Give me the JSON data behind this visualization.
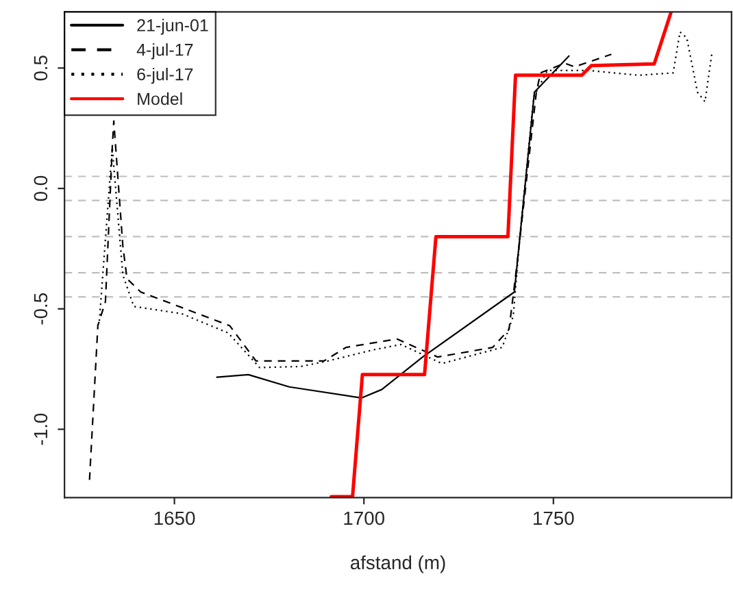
{
  "chart_data": {
    "type": "line",
    "xlabel": "afstand (m)",
    "xlim": [
      1621,
      1797
    ],
    "ylim": [
      -1.284,
      0.733
    ],
    "xticks": [
      1650,
      1700,
      1750
    ],
    "yticks": [
      {
        "value": -1,
        "label": "-1.0"
      },
      -0.5,
      {
        "value": 0,
        "label": "0.0"
      },
      0.5
    ],
    "grid": false,
    "legend": "top left",
    "series": [
      {
        "name": "21-jun-01",
        "color": "#000000",
        "line_style": "solid",
        "x": [
          1661.2,
          1669.5,
          1680.3,
          1699.3,
          1704.7,
          1715.5,
          1739.7,
          1745,
          1754.1
        ],
        "values": [
          -0.784,
          -0.773,
          -0.824,
          -0.87,
          -0.835,
          -0.7,
          -0.43,
          0.4,
          0.55
        ]
      },
      {
        "name": "4-jul-17",
        "color": "#000000",
        "line_style": "dashed",
        "x": [
          1627.6,
          1629.8,
          1631.8,
          1633.6,
          1634,
          1636.4,
          1637.5,
          1641.1,
          1664.6,
          1671.5,
          1689.5,
          1695.3,
          1708.7,
          1719.5,
          1734,
          1738.3,
          1740.5,
          1745.5,
          1746.6,
          1753,
          1755.6,
          1765.3
        ],
        "values": [
          -1.21,
          -0.57,
          -0.47,
          0.17,
          0.28,
          -0.24,
          -0.375,
          -0.43,
          -0.57,
          -0.716,
          -0.716,
          -0.66,
          -0.625,
          -0.7,
          -0.66,
          -0.585,
          -0.3,
          0.4,
          0.48,
          0.52,
          0.505,
          0.557
        ]
      },
      {
        "name": "6-jul-17",
        "color": "#000000",
        "line_style": "dotted",
        "x": [
          1630.2,
          1633.6,
          1636.4,
          1639.3,
          1651.9,
          1664.2,
          1672.5,
          1683.4,
          1690.6,
          1702.5,
          1709.8,
          1720.6,
          1736.5,
          1739.4,
          1741.2,
          1744.8,
          1748.4,
          1759.2,
          1772.6,
          1781.6,
          1783.4,
          1785.2,
          1788,
          1790,
          1791.8
        ],
        "values": [
          -0.55,
          0.17,
          -0.36,
          -0.49,
          -0.52,
          -0.6,
          -0.744,
          -0.739,
          -0.716,
          -0.67,
          -0.648,
          -0.727,
          -0.66,
          -0.53,
          -0.19,
          0.38,
          0.49,
          0.49,
          0.47,
          0.48,
          0.65,
          0.625,
          0.4,
          0.36,
          0.56
        ]
      },
      {
        "name": "Model",
        "color": "#ff0000",
        "line_style": "solid",
        "x": [
          1691.4,
          1697,
          1699.6,
          1716,
          1719,
          1738,
          1740,
          1757.5,
          1760,
          1776.6,
          1781
        ],
        "values": [
          -1.28,
          -1.28,
          -0.773,
          -0.773,
          -0.2,
          -0.2,
          0.47,
          0.47,
          0.51,
          0.517,
          0.73
        ]
      }
    ],
    "ref_lines": [
      {
        "axis": "y",
        "value": 0.05,
        "color": "#bebebe",
        "line_style": "dashed"
      },
      {
        "axis": "y",
        "value": -0.05,
        "color": "#bebebe",
        "line_style": "dashed"
      },
      {
        "axis": "y",
        "value": -0.2,
        "color": "#bebebe",
        "line_style": "dashed"
      },
      {
        "axis": "y",
        "value": -0.35,
        "color": "#bebebe",
        "line_style": "dashed"
      },
      {
        "axis": "y",
        "value": -0.45,
        "color": "#bebebe",
        "line_style": "dashed"
      }
    ]
  }
}
